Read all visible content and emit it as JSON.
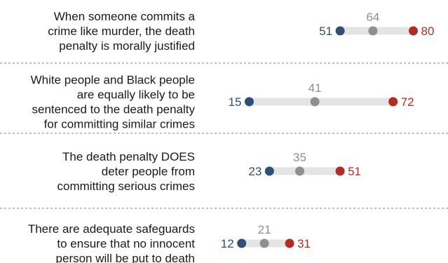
{
  "chart_data": {
    "type": "dot-plot",
    "series": [
      {
        "name": "",
        "color": "#2f4f79",
        "values": [
          51,
          15,
          23,
          12
        ]
      },
      {
        "name": "",
        "color": "#8f8f8f",
        "values": [
          64,
          41,
          35,
          21
        ]
      },
      {
        "name": "",
        "color": "#b42a25",
        "values": [
          80,
          72,
          51,
          31
        ]
      }
    ],
    "categories": [
      [
        "When someone commits a",
        "crime like murder, the death",
        "penalty is morally justified"
      ],
      [
        "White people and Black people",
        "are equally likely to be",
        "sentenced to the death penalty",
        "for committing similar crimes"
      ],
      [
        "The death penalty DOES",
        "deter people from",
        "committing serious crimes"
      ],
      [
        "There are adequate safeguards",
        "to ensure that no innocent",
        "person will be put to death"
      ]
    ],
    "xlim": [
      0,
      100
    ],
    "grid": false,
    "colors": {
      "track": "#e4e4e4",
      "divider": "#9a9a9a",
      "text": "#1a1a1a"
    }
  }
}
